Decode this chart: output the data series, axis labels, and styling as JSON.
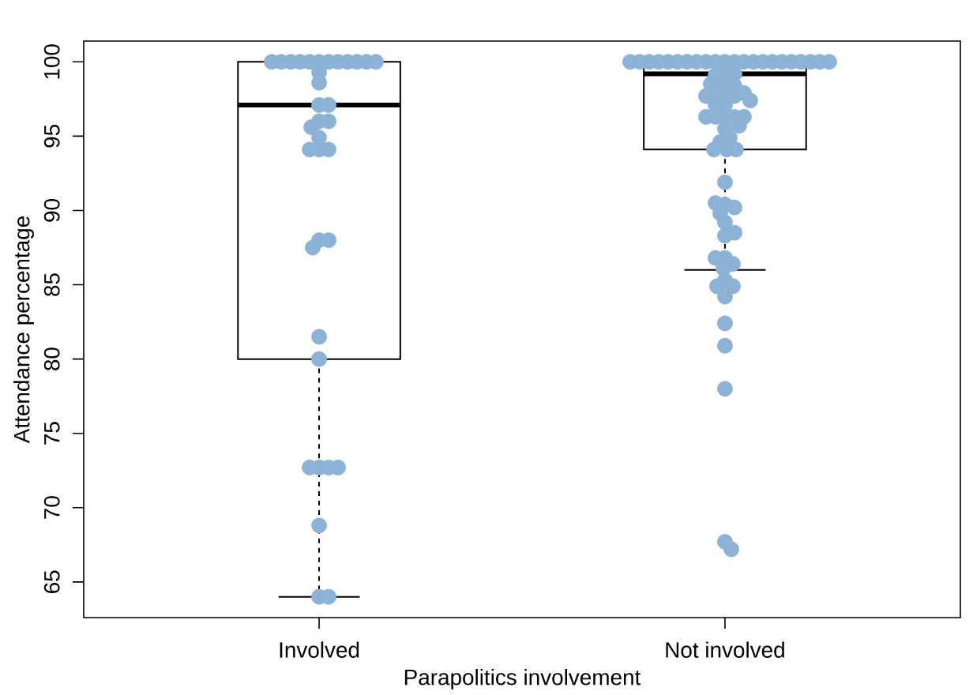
{
  "chart_data": {
    "type": "box",
    "xlabel": "Parapolitics involvement",
    "ylabel": "Attendance percentage",
    "categories": [
      "Involved",
      "Not involved"
    ],
    "ylim": [
      62.6,
      101.4
    ],
    "yticks": [
      65,
      70,
      75,
      80,
      85,
      90,
      95,
      100
    ],
    "marker": "circle",
    "series": [
      {
        "type": "box",
        "color": "#000000",
        "boxes": [
          {
            "low": 64,
            "q1": 80,
            "median": 97.1,
            "q3": 100,
            "high": 100
          },
          {
            "low": 86,
            "q1": 94.1,
            "median": 99.2,
            "q3": 100,
            "high": 100
          }
        ]
      },
      {
        "type": "scatter",
        "color": "#8cb2d6",
        "x": [
          "Involved",
          "Involved",
          "Involved",
          "Involved",
          "Involved",
          "Involved",
          "Involved",
          "Involved",
          "Involved",
          "Involved",
          "Involved",
          "Involved",
          "Involved",
          "Involved",
          "Involved",
          "Involved",
          "Involved",
          "Involved",
          "Involved",
          "Involved",
          "Involved",
          "Involved",
          "Involved",
          "Involved",
          "Involved",
          "Involved",
          "Involved",
          "Involved",
          "Involved",
          "Involved",
          "Involved",
          "Involved",
          "Involved",
          "Involved",
          "Involved",
          "Not involved",
          "Not involved",
          "Not involved",
          "Not involved",
          "Not involved",
          "Not involved",
          "Not involved",
          "Not involved",
          "Not involved",
          "Not involved",
          "Not involved",
          "Not involved",
          "Not involved",
          "Not involved",
          "Not involved",
          "Not involved",
          "Not involved",
          "Not involved",
          "Not involved",
          "Not involved",
          "Not involved",
          "Not involved",
          "Not involved",
          "Not involved",
          "Not involved",
          "Not involved",
          "Not involved",
          "Not involved",
          "Not involved",
          "Not involved",
          "Not involved",
          "Not involved",
          "Not involved",
          "Not involved",
          "Not involved",
          "Not involved",
          "Not involved",
          "Not involved",
          "Not involved",
          "Not involved",
          "Not involved",
          "Not involved",
          "Not involved",
          "Not involved",
          "Not involved",
          "Not involved",
          "Not involved",
          "Not involved",
          "Not involved",
          "Not involved",
          "Not involved",
          "Not involved",
          "Not involved",
          "Not involved",
          "Not involved",
          "Not involved",
          "Not involved",
          "Not involved",
          "Not involved",
          "Not involved",
          "Not involved",
          "Not involved",
          "Not involved",
          "Not involved",
          "Not involved",
          "Not involved",
          "Not involved",
          "Not involved",
          "Not involved"
        ],
        "values": [
          100,
          100,
          100,
          100,
          100,
          100,
          100,
          100,
          100,
          100,
          100,
          100,
          99.3,
          98.6,
          97.1,
          97.1,
          96.0,
          96.0,
          95.6,
          94.9,
          94.1,
          94.1,
          94.1,
          88.0,
          88.0,
          87.5,
          81.5,
          80.0,
          72.7,
          72.7,
          72.7,
          72.7,
          68.8,
          64.0,
          64.0,
          100,
          100,
          100,
          100,
          100,
          100,
          100,
          100,
          100,
          100,
          100,
          100,
          100,
          100,
          100,
          100,
          100,
          100,
          100,
          100,
          100,
          100,
          99.2,
          99.2,
          99.1,
          98.5,
          98.4,
          98.5,
          97.8,
          97.7,
          97.9,
          97.9,
          97.7,
          97.4,
          97.1,
          97.1,
          96.3,
          96.3,
          96.3,
          96.3,
          96.3,
          95.5,
          95.7,
          94.9,
          94.6,
          94.1,
          94.1,
          94.1,
          91.9,
          90.4,
          90.2,
          89.8,
          90.5,
          89.2,
          88.3,
          88.5,
          86.8,
          86.4,
          86.8,
          86.1,
          85.3,
          84.9,
          84.9,
          84.2,
          82.4,
          80.9,
          78.0,
          67.7,
          67.2
        ]
      }
    ]
  }
}
